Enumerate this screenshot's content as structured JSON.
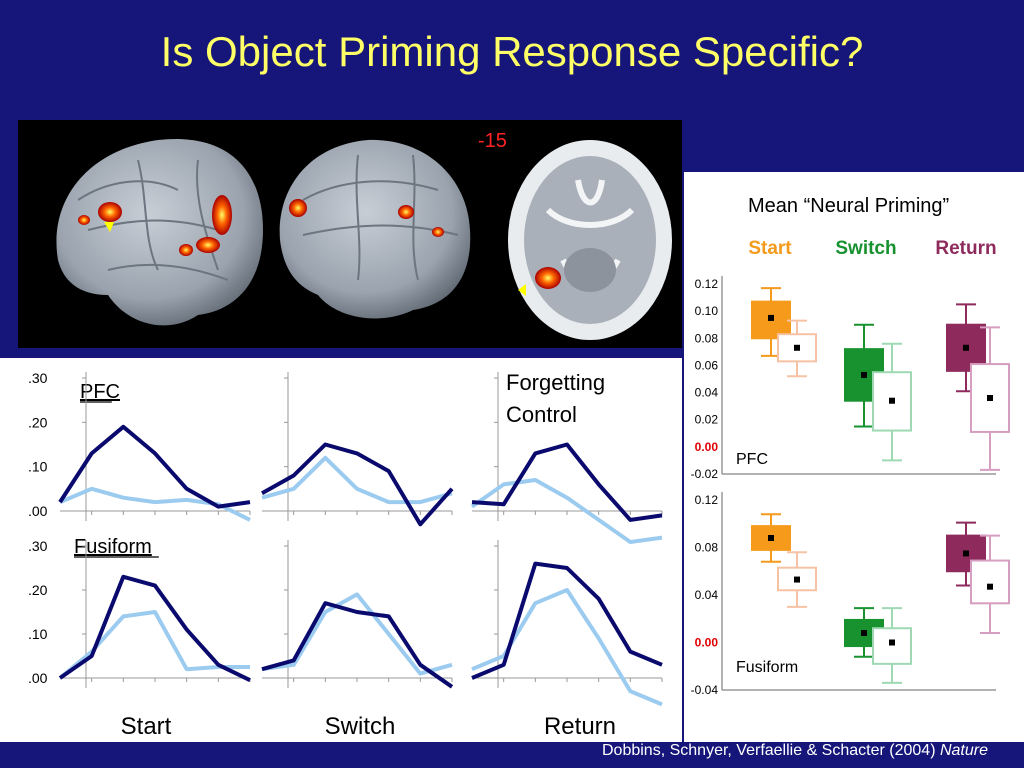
{
  "slide": {
    "title": "Is Object Priming Response Specific?",
    "slice_label": "-15",
    "citation_authors": "Dobbins, Schnyer, Verfaellie & Schacter (2004)",
    "citation_journal": "Nature"
  },
  "colors": {
    "background": "#15157a",
    "title": "#ffff66",
    "dark_line": "#0a0a6e",
    "light_line": "#9ccbf0",
    "start": "#f59a1a",
    "switch": "#17922f",
    "return": "#8e2a5c",
    "zero_label": "#e00000"
  },
  "chart_data": [
    {
      "type": "line",
      "panel": "time-courses",
      "rows": [
        {
          "label": "PFC",
          "yticks": [
            ".30",
            ".20",
            ".10",
            ".00"
          ],
          "ylim": [
            0,
            0.3
          ]
        },
        {
          "label": "Fusiform",
          "yticks": [
            ".30",
            ".20",
            ".10",
            ".00"
          ],
          "ylim": [
            0,
            0.3
          ]
        }
      ],
      "columns": [
        "Start",
        "Switch",
        "Return"
      ],
      "annotation": "Forgetting Control",
      "x": [
        0,
        1,
        2,
        3,
        4,
        5,
        6
      ],
      "plots": [
        {
          "row": 0,
          "col": 0,
          "dark": [
            0.02,
            0.13,
            0.19,
            0.13,
            0.05,
            0.01,
            0.02
          ],
          "light": [
            0.02,
            0.05,
            0.03,
            0.02,
            0.025,
            0.015,
            -0.02
          ]
        },
        {
          "row": 0,
          "col": 1,
          "dark": [
            0.04,
            0.08,
            0.15,
            0.13,
            0.09,
            -0.03,
            0.05
          ],
          "light": [
            0.03,
            0.05,
            0.12,
            0.05,
            0.02,
            0.02,
            0.04
          ]
        },
        {
          "row": 0,
          "col": 2,
          "dark": [
            0.02,
            0.015,
            0.13,
            0.15,
            0.06,
            -0.02,
            -0.01
          ],
          "light": [
            0.01,
            0.06,
            0.07,
            0.03,
            -0.02,
            -0.07,
            -0.06
          ]
        },
        {
          "row": 1,
          "col": 0,
          "dark": [
            0.0,
            0.05,
            0.23,
            0.21,
            0.11,
            0.03,
            -0.005
          ],
          "light": [
            0.0,
            0.06,
            0.14,
            0.15,
            0.02,
            0.025,
            0.025
          ]
        },
        {
          "row": 1,
          "col": 1,
          "dark": [
            0.02,
            0.04,
            0.17,
            0.15,
            0.14,
            0.03,
            -0.02
          ],
          "light": [
            0.02,
            0.03,
            0.15,
            0.19,
            0.1,
            0.01,
            0.03
          ]
        },
        {
          "row": 1,
          "col": 2,
          "dark": [
            0.0,
            0.03,
            0.26,
            0.25,
            0.18,
            0.06,
            0.03
          ],
          "light": [
            0.02,
            0.05,
            0.17,
            0.2,
            0.09,
            -0.03,
            -0.06
          ]
        }
      ]
    },
    {
      "type": "box",
      "panel": "mean-neural-priming",
      "title": "Mean “Neural Priming”",
      "categories": [
        "Start",
        "Switch",
        "Return"
      ],
      "subplots": [
        {
          "label": "PFC",
          "yticks": [
            "0.12",
            "0.10",
            "0.08",
            "0.06",
            "0.04",
            "0.02",
            "0.00",
            "-0.02"
          ],
          "ylim": [
            -0.02,
            0.12
          ],
          "boxes": [
            {
              "category": "Start",
              "style": "filled",
              "whisker_low": 0.067,
              "box_low": 0.08,
              "mean": 0.095,
              "box_high": 0.107,
              "whisker_high": 0.117
            },
            {
              "category": "Start",
              "style": "open",
              "whisker_low": 0.052,
              "box_low": 0.063,
              "mean": 0.073,
              "box_high": 0.083,
              "whisker_high": 0.093
            },
            {
              "category": "Switch",
              "style": "filled",
              "whisker_low": 0.015,
              "box_low": 0.034,
              "mean": 0.053,
              "box_high": 0.072,
              "whisker_high": 0.09
            },
            {
              "category": "Switch",
              "style": "open",
              "whisker_low": -0.01,
              "box_low": 0.012,
              "mean": 0.034,
              "box_high": 0.055,
              "whisker_high": 0.076
            },
            {
              "category": "Return",
              "style": "filled",
              "whisker_low": 0.041,
              "box_low": 0.056,
              "mean": 0.073,
              "box_high": 0.09,
              "whisker_high": 0.105
            },
            {
              "category": "Return",
              "style": "open",
              "whisker_low": -0.017,
              "box_low": 0.011,
              "mean": 0.036,
              "box_high": 0.061,
              "whisker_high": 0.088
            }
          ]
        },
        {
          "label": "Fusiform",
          "yticks": [
            "0.12",
            "0.08",
            "0.04",
            "0.00",
            "-0.04"
          ],
          "ylim": [
            -0.04,
            0.12
          ],
          "boxes": [
            {
              "category": "Start",
              "style": "filled",
              "whisker_low": 0.068,
              "box_low": 0.078,
              "mean": 0.088,
              "box_high": 0.098,
              "whisker_high": 0.108
            },
            {
              "category": "Start",
              "style": "open",
              "whisker_low": 0.03,
              "box_low": 0.044,
              "mean": 0.053,
              "box_high": 0.063,
              "whisker_high": 0.076
            },
            {
              "category": "Switch",
              "style": "filled",
              "whisker_low": -0.012,
              "box_low": -0.003,
              "mean": 0.008,
              "box_high": 0.019,
              "whisker_high": 0.029
            },
            {
              "category": "Switch",
              "style": "open",
              "whisker_low": -0.034,
              "box_low": -0.018,
              "mean": 0.0,
              "box_high": 0.012,
              "whisker_high": 0.029
            },
            {
              "category": "Return",
              "style": "filled",
              "whisker_low": 0.048,
              "box_low": 0.06,
              "mean": 0.075,
              "box_high": 0.09,
              "whisker_high": 0.101
            },
            {
              "category": "Return",
              "style": "open",
              "whisker_low": 0.008,
              "box_low": 0.033,
              "mean": 0.047,
              "box_high": 0.069,
              "whisker_high": 0.09
            }
          ]
        }
      ]
    }
  ]
}
